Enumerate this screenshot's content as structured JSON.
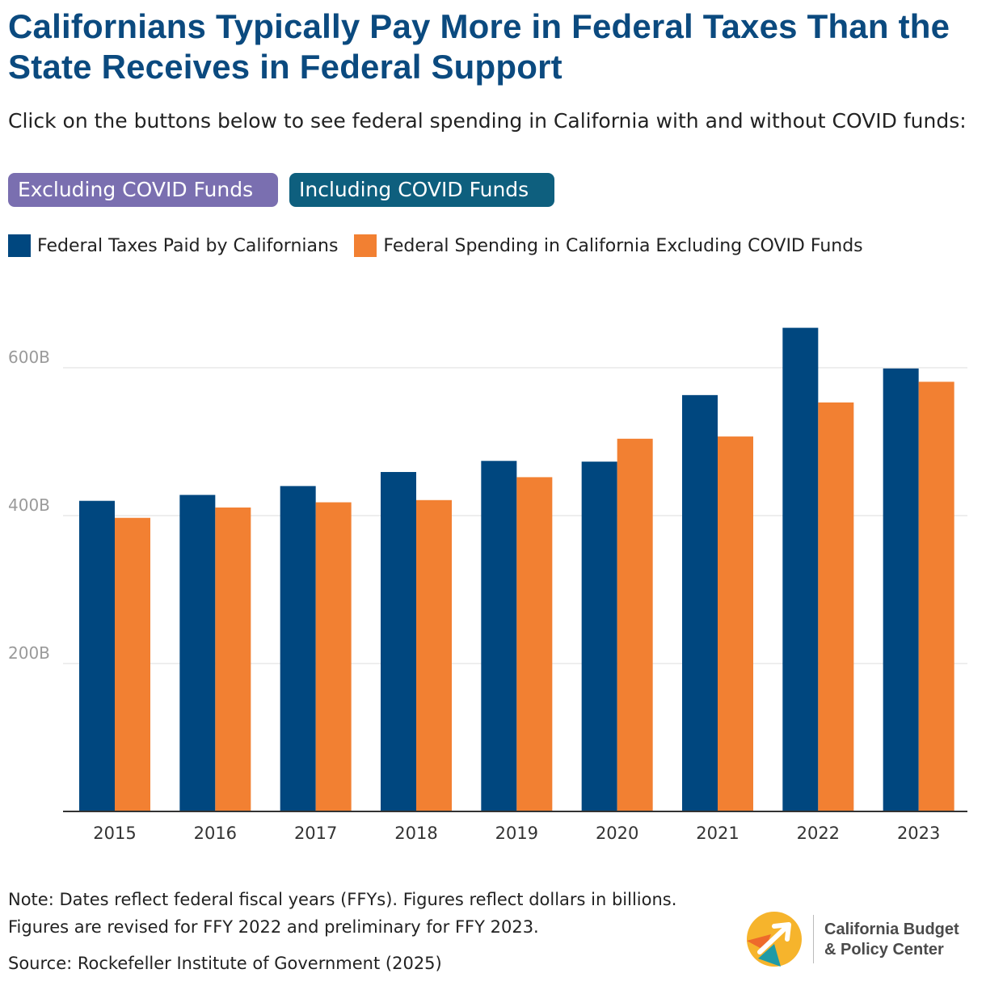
{
  "title": "Californians Typically Pay More in Federal Taxes Than the State Receives in Federal Support",
  "subtitle": "Click on the buttons below to see federal spending in California with and without COVID funds:",
  "buttons": {
    "excluding": "Excluding COVID Funds",
    "including": "Including COVID Funds"
  },
  "colors": {
    "taxes": "#00477f",
    "spending": "#f28032",
    "title": "#0b4a7f",
    "button_excluding": "#7a6fb0",
    "button_including": "#0e5f7e"
  },
  "chart_data": {
    "type": "bar",
    "categories": [
      "2015",
      "2016",
      "2017",
      "2018",
      "2019",
      "2020",
      "2021",
      "2022",
      "2023"
    ],
    "series": [
      {
        "name": "Federal Taxes Paid by Californians",
        "values": [
          420,
          428,
          440,
          459,
          474,
          473,
          563,
          654,
          599
        ]
      },
      {
        "name": "Federal Spending in California Excluding COVID Funds",
        "values": [
          397,
          411,
          418,
          421,
          452,
          504,
          507,
          553,
          581
        ]
      }
    ],
    "yticks": [
      200,
      400,
      600
    ],
    "ytick_labels": [
      "200B",
      "400B",
      "600B"
    ],
    "ylim": [
      0,
      720
    ],
    "grid": true,
    "legend": "top-left"
  },
  "footer": {
    "note_line1": "Note: Dates reflect federal fiscal years (FFYs). Figures reflect dollars in billions.",
    "note_line2": "Figures are revised for FFY 2022 and preliminary for FFY 2023.",
    "source": "Source: Rockefeller Institute of Government (2025)"
  },
  "logo": {
    "line1": "California Budget",
    "line2": "& Policy Center"
  }
}
